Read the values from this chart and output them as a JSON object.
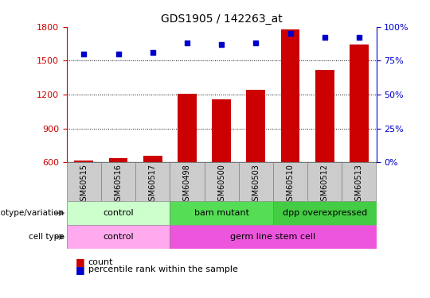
{
  "title": "GDS1905 / 142263_at",
  "samples": [
    "GSM60515",
    "GSM60516",
    "GSM60517",
    "GSM60498",
    "GSM60500",
    "GSM60503",
    "GSM60510",
    "GSM60512",
    "GSM60513"
  ],
  "counts": [
    620,
    640,
    660,
    1210,
    1160,
    1240,
    1780,
    1420,
    1640
  ],
  "percentile_ranks": [
    80,
    80,
    81,
    88,
    87,
    88,
    95,
    92,
    92
  ],
  "ylim_left": [
    600,
    1800
  ],
  "ylim_right": [
    0,
    100
  ],
  "yticks_left": [
    600,
    900,
    1200,
    1500,
    1800
  ],
  "yticks_right": [
    0,
    25,
    50,
    75,
    100
  ],
  "genotype_groups": [
    {
      "label": "control",
      "start": 0,
      "end": 3,
      "color": "#ccffcc"
    },
    {
      "label": "bam mutant",
      "start": 3,
      "end": 6,
      "color": "#55dd55"
    },
    {
      "label": "dpp overexpressed",
      "start": 6,
      "end": 9,
      "color": "#44cc44"
    }
  ],
  "cell_type_groups": [
    {
      "label": "control",
      "start": 0,
      "end": 3,
      "color": "#ffaaee"
    },
    {
      "label": "germ line stem cell",
      "start": 3,
      "end": 9,
      "color": "#ee55dd"
    }
  ],
  "bar_color": "#cc0000",
  "dot_color": "#0000cc",
  "left_axis_color": "#cc0000",
  "right_axis_color": "#0000cc",
  "grid_color": "#000000",
  "sample_box_color": "#cccccc",
  "legend_items": [
    {
      "color": "#cc0000",
      "label": "count"
    },
    {
      "color": "#0000cc",
      "label": "percentile rank within the sample"
    }
  ]
}
